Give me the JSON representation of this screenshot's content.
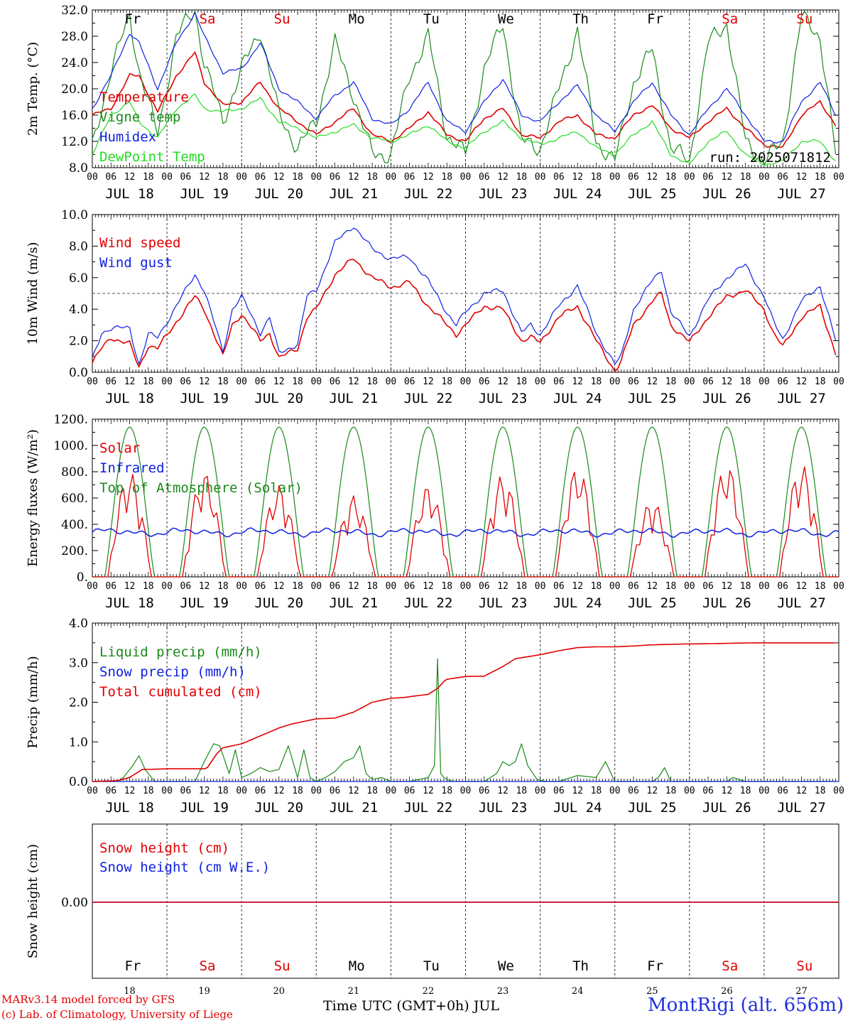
{
  "run_label": "run: 2025071812",
  "day_names": [
    "Fr",
    "Sa",
    "Su",
    "Mo",
    "Tu",
    "We",
    "Th",
    "Fr",
    "Sa",
    "Su"
  ],
  "weekend_days": [
    1,
    2,
    8,
    9
  ],
  "date_labels": [
    "JUL 18",
    "JUL 19",
    "JUL 20",
    "JUL 21",
    "JUL 22",
    "JUL 23",
    "JUL 24",
    "JUL 25",
    "JUL 26",
    "JUL 27"
  ],
  "bottom_day_numbers": [
    "18",
    "19",
    "20",
    "21",
    "22",
    "23",
    "24",
    "25",
    "26",
    "27"
  ],
  "hour_labels": [
    "00",
    "06",
    "12",
    "18"
  ],
  "end_hour_label": "00",
  "footer": {
    "credit_line1": "MARv3.14 model forced by GFS",
    "credit_line2": "(c) Lab. of Climatology, University of Liege",
    "x_axis_title": "Time UTC (GMT+0h) JUL",
    "station": "MontRigi (alt. 656m)"
  },
  "colors": {
    "red": "#e00000",
    "green": "#1a8a1a",
    "blue": "#1020e0",
    "lightgreen": "#22dd22"
  },
  "chart_data": [
    {
      "id": "temperature",
      "type": "line",
      "ylabel": "2m Temp. (°C)",
      "ylim": [
        8,
        32
      ],
      "yticks": [
        "8.0",
        "12.0",
        "16.0",
        "20.0",
        "24.0",
        "28.0",
        "32.0"
      ],
      "x_unit": "hours since 2025-07-18 00 UTC",
      "series": [
        {
          "name": "Temperature",
          "color": "red",
          "x": [
            0,
            6,
            12,
            15,
            21,
            27,
            33,
            36,
            42,
            48,
            54,
            60,
            66,
            72,
            78,
            84,
            90,
            96,
            102,
            108,
            114,
            120,
            126,
            132,
            138,
            144,
            150,
            156,
            162,
            168,
            174,
            180,
            186,
            192,
            198,
            204,
            210,
            216,
            222,
            228,
            234,
            239
          ],
          "y": [
            16,
            17,
            22,
            22,
            16.5,
            22,
            25.5,
            21,
            17.5,
            18,
            21,
            17,
            15,
            13,
            15,
            17,
            13,
            12,
            14,
            16.5,
            13,
            12,
            15.5,
            17,
            13,
            12.5,
            15,
            16,
            13,
            12.5,
            16,
            17.5,
            14,
            12.5,
            15,
            17,
            14,
            11.5,
            11,
            16,
            18,
            14.5
          ]
        },
        {
          "name": "Vigne temp",
          "color": "green",
          "x": [
            0,
            6,
            12,
            15,
            21,
            27,
            33,
            36,
            42,
            48,
            54,
            60,
            66,
            72,
            78,
            84,
            90,
            96,
            102,
            108,
            114,
            120,
            126,
            132,
            138,
            144,
            150,
            156,
            162,
            168,
            174,
            180,
            186,
            192,
            198,
            204,
            210,
            216,
            222,
            228,
            234,
            239
          ],
          "y": [
            11,
            23,
            31,
            23,
            13,
            28,
            32,
            24,
            15,
            23,
            29,
            16,
            11,
            15,
            27,
            19,
            10,
            10,
            22,
            28,
            13,
            10,
            23,
            30,
            12,
            11,
            20,
            29,
            12,
            9,
            21,
            26,
            11,
            9,
            27,
            30,
            12,
            9,
            12,
            31,
            28,
            10
          ]
        },
        {
          "name": "Humidex",
          "color": "blue",
          "x": [
            0,
            6,
            12,
            15,
            21,
            27,
            33,
            36,
            42,
            48,
            54,
            60,
            66,
            72,
            78,
            84,
            90,
            96,
            102,
            108,
            114,
            120,
            126,
            132,
            138,
            144,
            150,
            156,
            162,
            168,
            174,
            180,
            186,
            192,
            198,
            204,
            210,
            216,
            222,
            228,
            234,
            239
          ],
          "y": [
            17,
            22,
            28.5,
            27,
            20,
            27,
            31.5,
            28,
            22.5,
            23,
            27,
            20,
            18,
            15.5,
            19,
            21,
            15.5,
            14.5,
            17,
            21,
            15,
            13.5,
            18,
            21.5,
            16,
            15,
            18,
            20.5,
            16,
            13.5,
            18,
            21,
            16,
            13,
            17,
            20,
            16,
            12,
            12,
            18,
            21,
            16
          ]
        },
        {
          "name": "DewPoint Temp",
          "color": "lightgreen",
          "x": [
            0,
            6,
            12,
            15,
            21,
            27,
            33,
            36,
            42,
            48,
            54,
            60,
            66,
            72,
            78,
            84,
            90,
            96,
            102,
            108,
            114,
            120,
            126,
            132,
            138,
            144,
            150,
            156,
            162,
            168,
            174,
            180,
            186,
            192,
            198,
            204,
            210,
            216,
            222,
            228,
            234,
            239
          ],
          "y": [
            10,
            16,
            18,
            15,
            12.5,
            17,
            19,
            17,
            16.5,
            17,
            18.5,
            15,
            14,
            12.5,
            13.5,
            14.5,
            12.5,
            12,
            13,
            14.5,
            12,
            11,
            13.5,
            15,
            12.5,
            11.5,
            12.5,
            13.5,
            11,
            10,
            13,
            15,
            10,
            8.5,
            12,
            13.5,
            10,
            8.5,
            9,
            12,
            12,
            9
          ]
        }
      ]
    },
    {
      "id": "wind",
      "type": "line",
      "ylabel": "10m Wind (m/s)",
      "ylim": [
        0,
        10
      ],
      "yticks": [
        "0.0",
        "2.0",
        "4.0",
        "6.0",
        "8.0",
        "10.0"
      ],
      "reference_line": 5,
      "series": [
        {
          "name": "Wind speed",
          "color": "red",
          "x": [
            0,
            3,
            6,
            12,
            15,
            18,
            21,
            27,
            33,
            36,
            42,
            45,
            48,
            54,
            57,
            60,
            66,
            69,
            72,
            78,
            84,
            90,
            96,
            102,
            108,
            114,
            117,
            120,
            126,
            132,
            138,
            141,
            144,
            150,
            156,
            162,
            168,
            170,
            174,
            180,
            183,
            186,
            192,
            198,
            204,
            210,
            216,
            219,
            222,
            228,
            234,
            239
          ],
          "y": [
            0.6,
            1.5,
            2.2,
            1.8,
            0.3,
            1.7,
            1.5,
            3.2,
            4.8,
            4.0,
            1.0,
            3.0,
            3.7,
            2.0,
            2.5,
            0.9,
            1.5,
            3.5,
            4.0,
            6.2,
            7.2,
            6.0,
            5.4,
            5.7,
            4.2,
            3.0,
            2.4,
            3.0,
            4.2,
            4.0,
            2.0,
            2.2,
            1.9,
            3.5,
            4.2,
            2.0,
            0.1,
            0.7,
            3.0,
            4.5,
            5.0,
            3.0,
            1.9,
            3.5,
            4.8,
            5.2,
            4.0,
            2.5,
            1.6,
            3.5,
            4.2,
            1.2
          ]
        },
        {
          "name": "Wind gust",
          "color": "blue",
          "x": [
            0,
            3,
            6,
            12,
            15,
            18,
            21,
            27,
            33,
            36,
            42,
            45,
            48,
            54,
            57,
            60,
            66,
            69,
            72,
            78,
            84,
            90,
            96,
            102,
            108,
            114,
            117,
            120,
            126,
            132,
            138,
            141,
            144,
            150,
            156,
            162,
            168,
            170,
            174,
            180,
            183,
            186,
            192,
            198,
            204,
            210,
            216,
            219,
            222,
            228,
            234,
            239
          ],
          "y": [
            0.8,
            2.5,
            2.8,
            2.8,
            0.5,
            2.4,
            2.2,
            4.2,
            6.2,
            5.2,
            1.3,
            4.0,
            4.8,
            2.5,
            3.5,
            1.2,
            1.8,
            4.8,
            5.2,
            8.2,
            9.3,
            7.8,
            7.2,
            7.3,
            5.8,
            3.8,
            3.0,
            3.8,
            5.0,
            5.2,
            2.5,
            3.0,
            2.4,
            4.2,
            5.5,
            2.5,
            0.5,
            1.0,
            4.0,
            5.8,
            6.5,
            3.8,
            2.3,
            4.6,
            6.0,
            6.8,
            4.8,
            3.2,
            2.1,
            4.5,
            5.5,
            2.0
          ]
        }
      ]
    },
    {
      "id": "radiation",
      "type": "line",
      "ylabel": "Energy fluxes (W/m²)",
      "ylim": [
        0,
        1200
      ],
      "yticks": [
        "0.",
        "200.",
        "400.",
        "600.",
        "800.",
        "1000.",
        "1200."
      ],
      "series": [
        {
          "name": "Solar",
          "color": "red",
          "peaks": [
            800,
            800,
            700,
            620,
            700,
            780,
            840,
            590,
            860,
            860
          ]
        },
        {
          "name": "Infrared",
          "color": "blue",
          "values_range": [
            280,
            400
          ],
          "mean": 340
        },
        {
          "name": "Top of Atmosphere (Solar)",
          "color": "green",
          "peak": 1140,
          "sunrise_hour": 4,
          "sunset_hour": 20
        }
      ]
    },
    {
      "id": "precip",
      "type": "line",
      "ylabel": "Precip (mm/h)",
      "ylim": [
        0,
        4
      ],
      "yticks": [
        "0.0",
        "1.0",
        "2.0",
        "3.0",
        "4.0"
      ],
      "series": [
        {
          "name": "Liquid precip (mm/h)",
          "color": "green",
          "x": [
            0,
            8,
            10,
            13,
            15,
            17,
            20,
            24,
            27,
            30,
            33,
            36,
            39,
            41,
            44,
            46,
            48,
            51,
            54,
            57,
            60,
            63,
            66,
            68,
            70,
            72,
            75,
            78,
            81,
            84,
            86,
            88,
            90,
            93,
            96,
            99,
            102,
            105,
            108,
            110,
            111,
            112,
            113,
            114,
            116,
            120,
            126,
            130,
            132,
            134,
            136,
            138,
            140,
            143,
            146,
            150,
            156,
            162,
            165,
            168,
            174,
            180,
            182,
            184,
            186,
            192,
            198,
            204,
            206,
            210,
            216,
            222,
            228,
            234,
            239
          ],
          "y": [
            0,
            0,
            0.1,
            0.4,
            0.65,
            0.3,
            0,
            0,
            0,
            0,
            0,
            0.5,
            0.95,
            0.9,
            0.2,
            0.8,
            0.1,
            0.2,
            0.35,
            0.25,
            0.3,
            0.9,
            0.1,
            0.8,
            0.1,
            0,
            0.1,
            0.25,
            0.5,
            0.6,
            0.9,
            0.2,
            0.05,
            0.1,
            0,
            0,
            0,
            0.05,
            0.1,
            0.4,
            3.1,
            0.2,
            0.1,
            0.05,
            0,
            0,
            0,
            0.2,
            0.5,
            0.4,
            0.5,
            0.95,
            0.4,
            0.05,
            0,
            0,
            0.15,
            0.1,
            0.5,
            0,
            0,
            0,
            0.1,
            0.35,
            0,
            0,
            0,
            0,
            0.1,
            0,
            0,
            0,
            0,
            0,
            0
          ]
        },
        {
          "name": "Snow precip (mm/h)",
          "color": "blue",
          "constant": 0
        },
        {
          "name": "Total cumulated (cm)",
          "color": "red",
          "x": [
            0,
            8,
            12,
            16,
            24,
            30,
            36,
            37,
            40,
            42,
            48,
            54,
            60,
            64,
            72,
            78,
            84,
            90,
            96,
            100,
            108,
            111,
            113,
            114,
            120,
            126,
            132,
            136,
            144,
            150,
            156,
            162,
            168,
            174,
            180,
            190,
            200,
            212,
            239
          ],
          "y": [
            0,
            0.02,
            0.1,
            0.3,
            0.32,
            0.32,
            0.32,
            0.35,
            0.7,
            0.85,
            0.95,
            1.15,
            1.35,
            1.45,
            1.58,
            1.6,
            1.75,
            2.0,
            2.1,
            2.12,
            2.2,
            2.35,
            2.52,
            2.58,
            2.65,
            2.66,
            2.9,
            3.1,
            3.2,
            3.3,
            3.38,
            3.4,
            3.4,
            3.42,
            3.45,
            3.47,
            3.48,
            3.5,
            3.5
          ]
        }
      ]
    },
    {
      "id": "snow",
      "type": "line",
      "ylabel": "Snow height (cm)",
      "yticks": [
        "0.00"
      ],
      "series": [
        {
          "name": "Snow height (cm)",
          "color": "red",
          "constant": 0
        },
        {
          "name": "Snow height (cm W.E.)",
          "color": "blue",
          "constant": 0
        }
      ]
    }
  ]
}
